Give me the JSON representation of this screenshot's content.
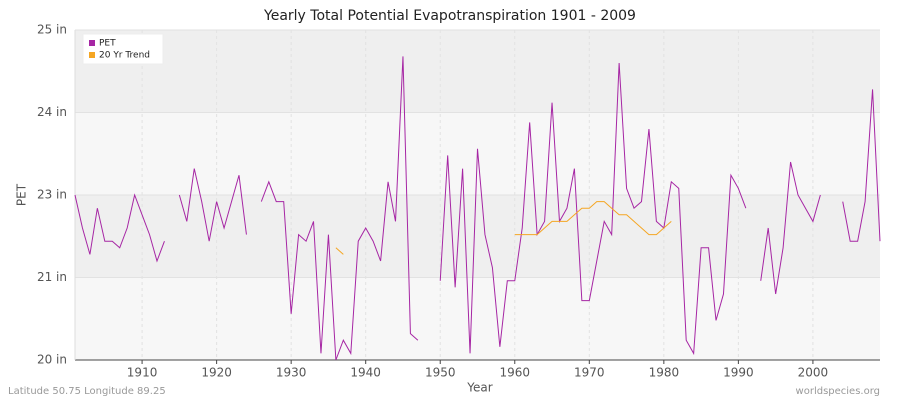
{
  "chart_data": {
    "type": "line",
    "title": "Yearly Total Potential Evapotranspiration 1901 - 2009",
    "xlabel": "Year",
    "ylabel": "PET",
    "note_left": "Latitude 50.75 Longitude 89.25",
    "note_right": "worldspecies.org",
    "x": [
      1901,
      1902,
      1903,
      1904,
      1905,
      1906,
      1907,
      1908,
      1909,
      1910,
      1911,
      1912,
      1913,
      1914,
      1915,
      1916,
      1917,
      1918,
      1919,
      1920,
      1921,
      1922,
      1923,
      1924,
      1925,
      1926,
      1927,
      1928,
      1929,
      1930,
      1931,
      1932,
      1933,
      1934,
      1935,
      1936,
      1937,
      1938,
      1939,
      1940,
      1941,
      1942,
      1943,
      1944,
      1945,
      1946,
      1947,
      1948,
      1949,
      1950,
      1951,
      1952,
      1953,
      1954,
      1955,
      1956,
      1957,
      1958,
      1959,
      1960,
      1961,
      1962,
      1963,
      1964,
      1965,
      1966,
      1967,
      1968,
      1969,
      1970,
      1971,
      1972,
      1973,
      1974,
      1975,
      1976,
      1977,
      1978,
      1979,
      1980,
      1981,
      1982,
      1983,
      1984,
      1985,
      1986,
      1987,
      1988,
      1989,
      1990,
      1991,
      1992,
      1993,
      1994,
      1995,
      1996,
      1997,
      1998,
      1999,
      2000,
      2001,
      2002,
      2003,
      2004,
      2005,
      2006,
      2007,
      2008,
      2009
    ],
    "series": [
      {
        "name": "PET",
        "color": "#a626a4",
        "values": [
          22.5,
          22.0,
          21.6,
          22.3,
          21.8,
          21.8,
          21.7,
          22.0,
          22.5,
          22.2,
          21.9,
          21.5,
          21.8,
          null,
          22.5,
          22.1,
          22.9,
          22.4,
          21.8,
          22.4,
          22.0,
          22.4,
          22.8,
          21.9,
          null,
          22.4,
          22.7,
          22.4,
          22.4,
          20.7,
          21.9,
          21.8,
          22.1,
          20.1,
          21.9,
          20.0,
          20.3,
          20.1,
          21.8,
          22.0,
          21.8,
          21.5,
          22.7,
          22.1,
          24.6,
          20.4,
          20.3,
          null,
          null,
          21.2,
          23.1,
          21.1,
          22.9,
          20.1,
          23.2,
          21.9,
          21.4,
          20.2,
          21.2,
          21.2,
          22.0,
          23.6,
          21.9,
          22.1,
          23.9,
          22.1,
          22.3,
          22.9,
          20.9,
          20.9,
          21.5,
          22.1,
          21.9,
          24.5,
          22.6,
          22.3,
          22.4,
          23.5,
          22.1,
          22.0,
          22.7,
          22.6,
          20.3,
          20.1,
          21.7,
          21.7,
          20.6,
          21.0,
          22.8,
          22.6,
          22.3,
          null,
          21.2,
          22.0,
          21.0,
          21.7,
          23.0,
          22.5,
          22.3,
          22.1,
          22.5,
          null,
          null,
          22.4,
          21.8,
          21.8,
          22.4,
          24.1,
          21.8
        ]
      },
      {
        "name": "20 Yr Trend",
        "color": "#f5a623",
        "values": [
          null,
          null,
          null,
          null,
          null,
          null,
          null,
          null,
          null,
          null,
          null,
          null,
          null,
          null,
          null,
          null,
          null,
          null,
          null,
          null,
          null,
          null,
          null,
          null,
          null,
          null,
          null,
          null,
          null,
          null,
          null,
          null,
          null,
          null,
          null,
          21.7,
          21.6,
          null,
          null,
          null,
          null,
          null,
          null,
          null,
          null,
          null,
          null,
          null,
          null,
          null,
          null,
          null,
          null,
          null,
          null,
          null,
          null,
          null,
          null,
          21.9,
          21.9,
          21.9,
          21.9,
          22.0,
          22.1,
          22.1,
          22.1,
          22.2,
          22.3,
          22.3,
          22.4,
          22.4,
          22.3,
          22.2,
          22.2,
          22.1,
          22.0,
          21.9,
          21.9,
          22.0,
          22.1,
          null,
          null,
          null,
          null,
          null,
          null,
          null,
          null,
          null,
          null,
          null,
          null,
          null,
          null,
          null,
          null,
          null,
          null,
          null,
          null,
          null,
          null,
          null,
          null,
          null,
          null,
          null,
          null
        ]
      }
    ],
    "xlim": [
      1901,
      2009
    ],
    "xticks": [
      1910,
      1920,
      1930,
      1940,
      1950,
      1960,
      1970,
      1980,
      1990,
      2000
    ],
    "ylim": [
      20,
      25
    ],
    "yticks": [
      {
        "value": 20,
        "label": "20 in"
      },
      {
        "value": 21.25,
        "label": "21 in"
      },
      {
        "value": 22.5,
        "label": "23 in"
      },
      {
        "value": 23.75,
        "label": "24 in"
      },
      {
        "value": 25,
        "label": "25 in"
      }
    ],
    "grid": true,
    "legend": "upper left"
  }
}
